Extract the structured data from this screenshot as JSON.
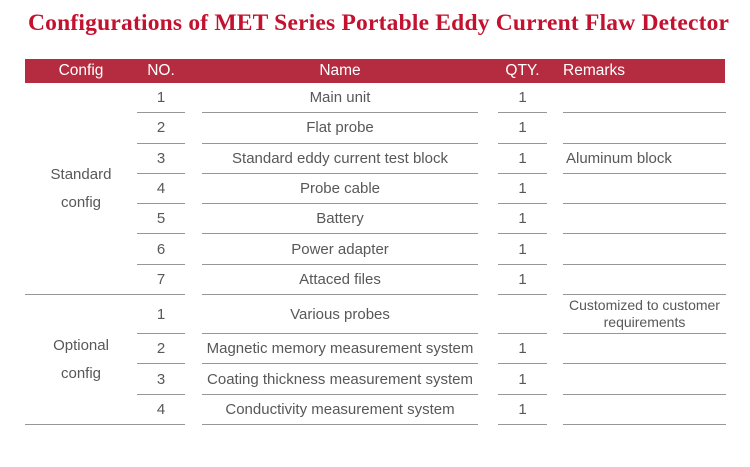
{
  "page": {
    "title": "Configurations of MET Series Portable Eddy Current Flaw Detector",
    "colors": {
      "accent_red": "#c3122f",
      "header_bar_red": "#b52c40",
      "body_text_gray": "#595757",
      "line_gray": "#979797",
      "header_text": "#ffffff"
    }
  },
  "table": {
    "headers": {
      "config": "Config",
      "no": "NO.",
      "name": "Name",
      "qty": "QTY.",
      "remarks": "Remarks"
    },
    "sections": [
      {
        "label": "Standard config",
        "rows": [
          {
            "no": "1",
            "name": "Main unit",
            "qty": "1",
            "remarks": ""
          },
          {
            "no": "2",
            "name": "Flat probe",
            "qty": "1",
            "remarks": ""
          },
          {
            "no": "3",
            "name": "Standard eddy current test block",
            "qty": "1",
            "remarks": "Aluminum block"
          },
          {
            "no": "4",
            "name": "Probe cable",
            "qty": "1",
            "remarks": ""
          },
          {
            "no": "5",
            "name": "Battery",
            "qty": "1",
            "remarks": ""
          },
          {
            "no": "6",
            "name": "Power adapter",
            "qty": "1",
            "remarks": ""
          },
          {
            "no": "7",
            "name": "Attaced files",
            "qty": "1",
            "remarks": ""
          }
        ]
      },
      {
        "label": "Optional config",
        "rows": [
          {
            "no": "1",
            "name": "Various probes",
            "qty": "",
            "remarks": "Customized to customer requirements"
          },
          {
            "no": "2",
            "name": "Magnetic memory measurement system",
            "qty": "1",
            "remarks": ""
          },
          {
            "no": "3",
            "name": "Coating thickness measurement system",
            "qty": "1",
            "remarks": ""
          },
          {
            "no": "4",
            "name": "Conductivity measurement system",
            "qty": "1",
            "remarks": ""
          }
        ]
      }
    ]
  }
}
